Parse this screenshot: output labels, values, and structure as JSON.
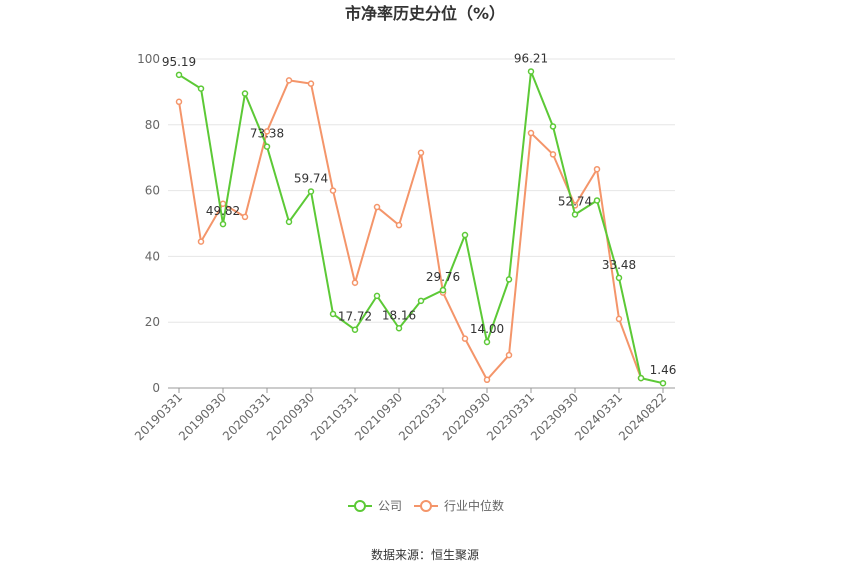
{
  "chart_data": {
    "type": "line",
    "title": "市净率历史分位（%）",
    "categories": [
      "20190331",
      null,
      "20190930",
      null,
      "20200331",
      null,
      "20200930",
      null,
      "20210331",
      null,
      "20210930",
      null,
      "20220331",
      null,
      "20220930",
      null,
      "20230331",
      null,
      "20230930",
      null,
      "20240331",
      null,
      "20240822"
    ],
    "series": [
      {
        "name": "公司",
        "color": "#5cc936",
        "values": [
          95.19,
          91,
          49.82,
          89.5,
          73.38,
          50.5,
          59.74,
          22.5,
          17.72,
          28,
          18.16,
          26.5,
          29.76,
          46.5,
          14.0,
          33,
          96.21,
          79.5,
          52.74,
          57,
          33.48,
          3,
          1.46
        ],
        "value_labels": [
          "95.19",
          null,
          "49.82",
          null,
          "73.38",
          null,
          "59.74",
          null,
          "17.72",
          null,
          "18.16",
          null,
          "29.76",
          null,
          "14.00",
          null,
          "96.21",
          null,
          "52.74",
          null,
          "33.48",
          null,
          "1.46"
        ]
      },
      {
        "name": "行业中位数",
        "color": "#f4956a",
        "values": [
          87,
          44.5,
          56,
          52,
          78,
          93.5,
          92.5,
          60,
          32,
          55,
          49.5,
          71.5,
          29,
          15,
          2.5,
          10,
          77.5,
          71,
          55.5,
          66.5,
          21,
          3,
          null
        ]
      }
    ],
    "ylim": [
      0,
      100
    ],
    "yticks": [
      0,
      20,
      40,
      60,
      80,
      100
    ],
    "grid": true,
    "legend": "bottom",
    "source": "数据来源：恒生聚源"
  }
}
